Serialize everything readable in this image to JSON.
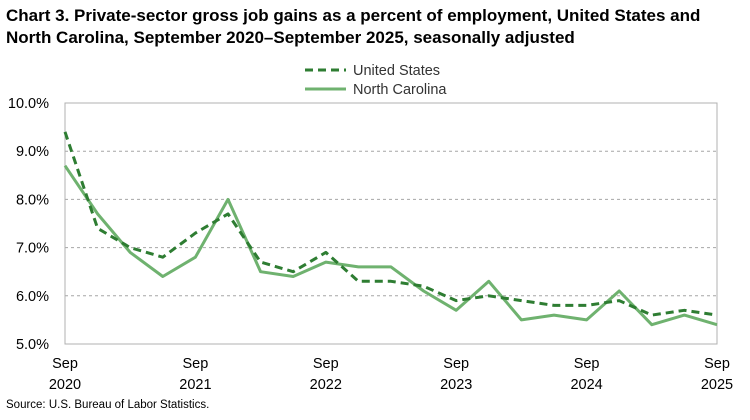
{
  "title": "Chart 3. Private-sector gross job gains as a percent of employment, United States and North Carolina, September 2020–September 2025, seasonally adjusted",
  "source": "Source: U.S. Bureau of Labor Statistics.",
  "chart_data": {
    "type": "line",
    "title": "Chart 3. Private-sector gross job gains as a percent of employment, United States and North Carolina, September 2020–September 2025, seasonally adjusted",
    "xlabel": "",
    "ylabel": "",
    "x": [
      "Sep 2020",
      "Dec 2020",
      "Mar 2021",
      "Jun 2021",
      "Sep 2021",
      "Dec 2021",
      "Mar 2022",
      "Jun 2022",
      "Sep 2022",
      "Dec 2022",
      "Mar 2023",
      "Jun 2023",
      "Sep 2023",
      "Dec 2023",
      "Mar 2024",
      "Jun 2024",
      "Sep 2024",
      "Dec 2024",
      "Mar 2025",
      "Jun 2025",
      "Sep 2025"
    ],
    "x_tick_labels": [
      {
        "month": "Sep",
        "year": "2020",
        "index": 0
      },
      {
        "month": "Sep",
        "year": "2021",
        "index": 4
      },
      {
        "month": "Sep",
        "year": "2022",
        "index": 8
      },
      {
        "month": "Sep",
        "year": "2023",
        "index": 12
      },
      {
        "month": "Sep",
        "year": "2024",
        "index": 16
      },
      {
        "month": "Sep",
        "year": "2025",
        "index": 20
      }
    ],
    "y_ticks": [
      5.0,
      6.0,
      7.0,
      8.0,
      9.0,
      10.0
    ],
    "y_tick_labels": [
      "5.0%",
      "6.0%",
      "7.0%",
      "8.0%",
      "9.0%",
      "10.0%"
    ],
    "ylim": [
      5.0,
      10.0
    ],
    "grid": "horizontal dashed",
    "legend_position": "top-center",
    "series": [
      {
        "name": "United States",
        "style": "dashed",
        "color": "#2e7d32",
        "values": [
          9.4,
          7.4,
          7.0,
          6.8,
          7.3,
          7.7,
          6.7,
          6.5,
          6.9,
          6.3,
          6.3,
          6.2,
          5.9,
          6.0,
          5.9,
          5.8,
          5.8,
          5.9,
          5.6,
          5.7,
          5.6
        ]
      },
      {
        "name": "North Carolina",
        "style": "solid",
        "color": "#6fb26f",
        "values": [
          8.7,
          7.7,
          6.9,
          6.4,
          6.8,
          8.0,
          6.5,
          6.4,
          6.7,
          6.6,
          6.6,
          6.1,
          5.7,
          6.3,
          5.5,
          5.6,
          5.5,
          6.1,
          5.4,
          5.6,
          5.4
        ]
      }
    ]
  }
}
